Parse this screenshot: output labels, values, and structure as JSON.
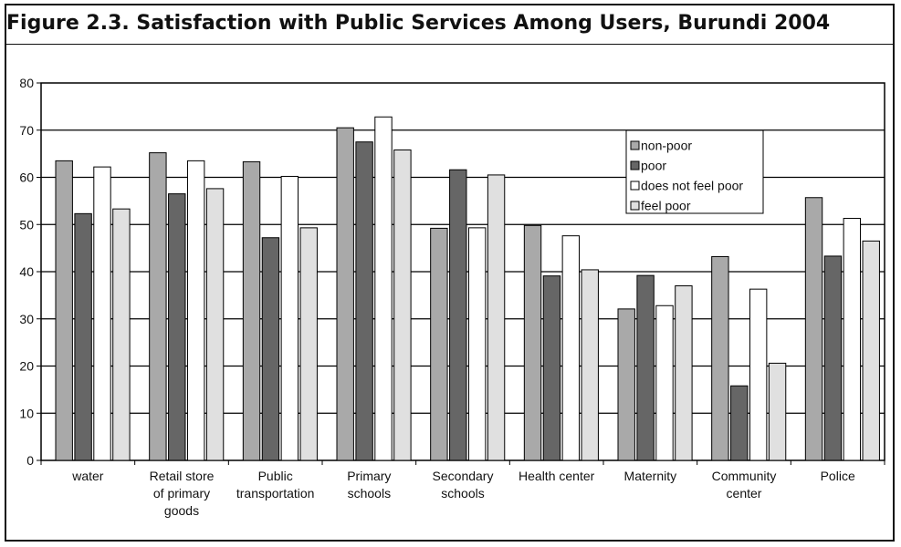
{
  "figure": {
    "title": "Figure 2.3.  Satisfaction with Public Services Among Users, Burundi 2004"
  },
  "chart_data": {
    "type": "bar",
    "title": "",
    "xlabel": "",
    "ylabel": "",
    "ylim": [
      0,
      80
    ],
    "yticks": [
      0,
      10,
      20,
      30,
      40,
      50,
      60,
      70,
      80
    ],
    "grid": true,
    "legend_position": "top-right",
    "categories": [
      [
        "water"
      ],
      [
        "Retail store",
        "of primary",
        "goods"
      ],
      [
        "Public",
        "transportation"
      ],
      [
        "Primary",
        "schools"
      ],
      [
        "Secondary",
        "schools"
      ],
      [
        "Health center"
      ],
      [
        "Maternity"
      ],
      [
        "Community",
        "center"
      ],
      [
        "Police"
      ]
    ],
    "series": [
      {
        "name": "non-poor",
        "color": "#a9a9a9",
        "values": [
          63.5,
          65.2,
          63.3,
          70.5,
          49.2,
          49.8,
          32.1,
          43.2,
          55.7
        ]
      },
      {
        "name": "poor",
        "color": "#666666",
        "values": [
          52.3,
          56.5,
          47.2,
          67.5,
          61.6,
          39.1,
          39.2,
          15.8,
          43.3
        ]
      },
      {
        "name": "does not feel poor",
        "color": "#ffffff",
        "values": [
          62.2,
          63.5,
          60.2,
          72.8,
          49.3,
          47.6,
          32.8,
          36.3,
          51.3
        ]
      },
      {
        "name": "feel poor",
        "color": "#e0e0e0",
        "values": [
          53.3,
          57.6,
          49.3,
          65.8,
          60.5,
          40.4,
          37.0,
          20.6,
          46.5
        ]
      }
    ]
  }
}
